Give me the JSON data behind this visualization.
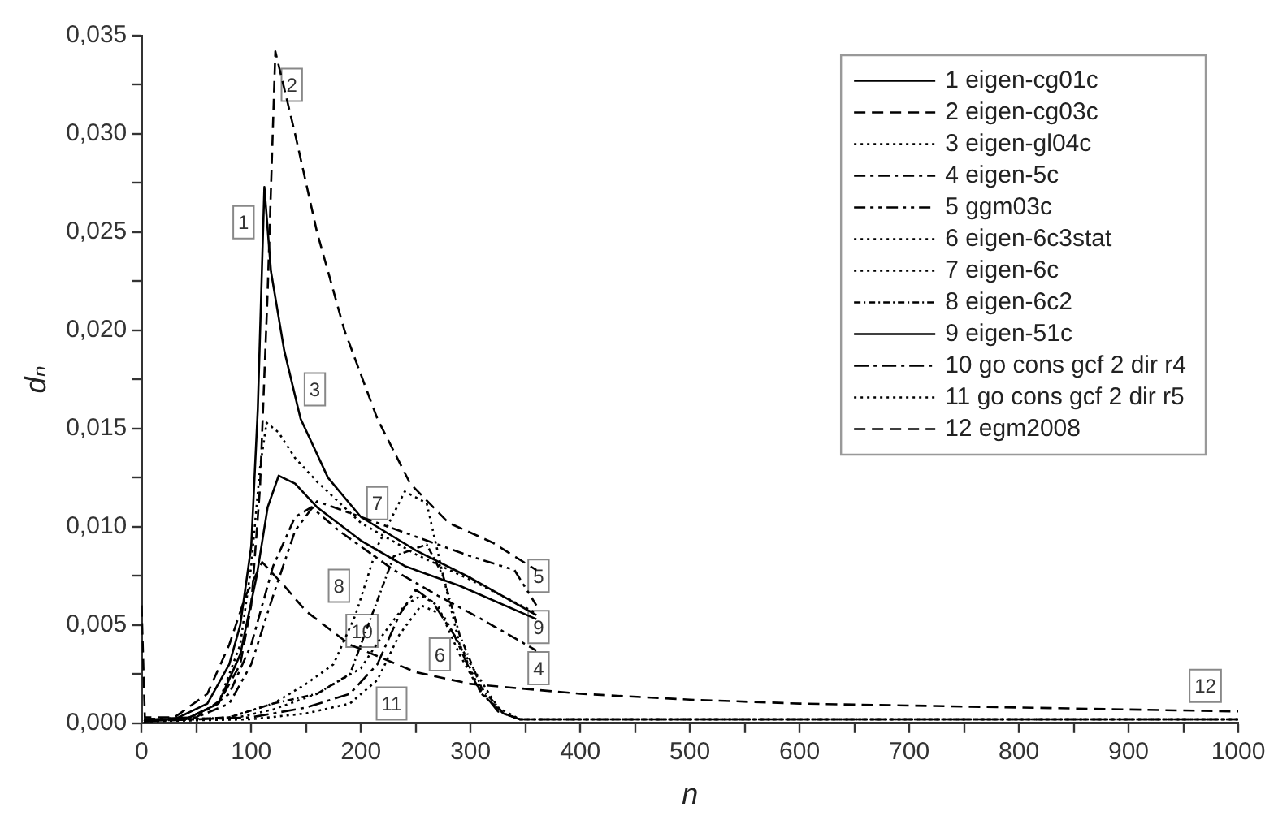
{
  "chart_data": {
    "type": "line",
    "xlabel": "n",
    "ylabel": "dₙ",
    "xlim": [
      0,
      1000
    ],
    "ylim": [
      0,
      0.035
    ],
    "xticks": [
      0,
      {
        "value": 50,
        "label": null
      },
      100,
      {
        "value": 150,
        "label": null
      },
      200,
      {
        "value": 250,
        "label": null
      },
      300,
      {
        "value": 350,
        "label": null
      },
      400,
      {
        "value": 450,
        "label": null
      },
      500,
      {
        "value": 550,
        "label": null
      },
      600,
      {
        "value": 650,
        "label": null
      },
      700,
      {
        "value": 750,
        "label": null
      },
      800,
      {
        "value": 850,
        "label": null
      },
      900,
      {
        "value": 950,
        "label": null
      },
      1000
    ],
    "yticks": [
      {
        "value": 0,
        "label": "0,000"
      },
      {
        "value": 0.0025,
        "label": null
      },
      {
        "value": 0.005,
        "label": "0,005"
      },
      {
        "value": 0.0075,
        "label": null
      },
      {
        "value": 0.01,
        "label": "0,010"
      },
      {
        "value": 0.0125,
        "label": null
      },
      {
        "value": 0.015,
        "label": "0,015"
      },
      {
        "value": 0.0175,
        "label": null
      },
      {
        "value": 0.02,
        "label": "0,020"
      },
      {
        "value": 0.0225,
        "label": null
      },
      {
        "value": 0.025,
        "label": "0,025"
      },
      {
        "value": 0.0275,
        "label": null
      },
      {
        "value": 0.03,
        "label": "0,030"
      },
      {
        "value": 0.0325,
        "label": null
      },
      {
        "value": 0.035,
        "label": "0,035"
      }
    ],
    "grid": false,
    "legend": "top right",
    "marker": "none",
    "series": [
      {
        "name": "1 eigen-cg01c",
        "color": "#000000",
        "line_style": "solid",
        "x": [
          2,
          30,
          60,
          80,
          90,
          100,
          106,
          112,
          118,
          130,
          145,
          170,
          200,
          250,
          300,
          360
        ],
        "values": [
          0.0002,
          0.0002,
          0.001,
          0.003,
          0.005,
          0.009,
          0.016,
          0.0273,
          0.023,
          0.019,
          0.0155,
          0.0125,
          0.0105,
          0.0088,
          0.0074,
          0.0055
        ]
      },
      {
        "name": "2 eigen-cg03c",
        "color": "#000000",
        "line_style": "dashed",
        "x": [
          2,
          40,
          70,
          90,
          100,
          108,
          115,
          122,
          140,
          160,
          185,
          215,
          245,
          280,
          320,
          360
        ],
        "values": [
          0.0002,
          0.0002,
          0.001,
          0.003,
          0.006,
          0.012,
          0.022,
          0.0342,
          0.03,
          0.025,
          0.02,
          0.0155,
          0.0122,
          0.0102,
          0.0092,
          0.0078
        ]
      },
      {
        "name": "3 eigen-gl04c",
        "color": "#000000",
        "line_style": "dotted",
        "x": [
          2,
          40,
          70,
          90,
          100,
          108,
          114,
          125,
          140,
          160,
          200,
          250,
          300,
          360
        ],
        "values": [
          0.0002,
          0.0002,
          0.001,
          0.004,
          0.008,
          0.013,
          0.0153,
          0.0148,
          0.0135,
          0.0123,
          0.0102,
          0.0086,
          0.0073,
          0.0056
        ]
      },
      {
        "name": "4 eigen-5c",
        "color": "#000000",
        "line_style": "dashed",
        "x": [
          2,
          50,
          80,
          100,
          120,
          140,
          155,
          180,
          200,
          230,
          270,
          310,
          360
        ],
        "values": [
          0.0002,
          0.0003,
          0.0015,
          0.004,
          0.008,
          0.0105,
          0.011,
          0.0098,
          0.009,
          0.0078,
          0.0065,
          0.0053,
          0.0037
        ]
      },
      {
        "name": "5 ggm03c",
        "color": "#000000",
        "line_style": "dashed",
        "x": [
          2,
          50,
          80,
          100,
          120,
          140,
          160,
          200,
          250,
          300,
          340,
          360
        ],
        "values": [
          0.0002,
          0.0003,
          0.001,
          0.003,
          0.0065,
          0.0098,
          0.0113,
          0.0105,
          0.0095,
          0.0085,
          0.0078,
          0.006
        ]
      },
      {
        "name": "6 eigen-6c3stat",
        "color": "#000000",
        "line_style": "dotted",
        "x": [
          2,
          80,
          120,
          160,
          200,
          220,
          240,
          255,
          270,
          290,
          310,
          330,
          345,
          400,
          600,
          800,
          1000
        ],
        "values": [
          0.0001,
          0.0002,
          0.0007,
          0.0015,
          0.0028,
          0.0045,
          0.006,
          0.0065,
          0.006,
          0.0035,
          0.0015,
          0.0005,
          0.0002,
          0.0002,
          0.0002,
          0.0002,
          0.0002
        ]
      },
      {
        "name": "7 eigen-6c",
        "color": "#000000",
        "line_style": "dotted",
        "x": [
          2,
          80,
          120,
          150,
          175,
          195,
          215,
          240,
          260,
          275,
          290,
          310,
          330,
          345,
          400,
          600,
          800,
          1000
        ],
        "values": [
          0.0001,
          0.0003,
          0.001,
          0.002,
          0.003,
          0.0055,
          0.009,
          0.0118,
          0.0112,
          0.0075,
          0.004,
          0.0015,
          0.0005,
          0.0002,
          0.0002,
          0.0002,
          0.0002,
          0.0002
        ]
      },
      {
        "name": "8 eigen-6c2",
        "color": "#000000",
        "line_style": "dashed",
        "x": [
          2,
          80,
          120,
          160,
          190,
          210,
          230,
          260,
          275,
          290,
          310,
          330,
          345,
          400,
          600,
          800,
          1000
        ],
        "values": [
          0.0001,
          0.0003,
          0.001,
          0.0015,
          0.0025,
          0.0055,
          0.0085,
          0.0091,
          0.0075,
          0.0045,
          0.0018,
          0.0005,
          0.0002,
          0.0002,
          0.0002,
          0.0002,
          0.0002
        ]
      },
      {
        "name": "9 eigen-51c",
        "color": "#000000",
        "line_style": "solid",
        "x": [
          2,
          40,
          70,
          90,
          105,
          115,
          125,
          140,
          160,
          200,
          240,
          290,
          360
        ],
        "values": [
          0.0002,
          0.0002,
          0.001,
          0.0035,
          0.0075,
          0.011,
          0.0126,
          0.0122,
          0.011,
          0.0093,
          0.008,
          0.007,
          0.0053
        ]
      },
      {
        "name": "10 go cons gcf 2 dir r4",
        "color": "#000000",
        "line_style": "dashed",
        "x": [
          2,
          100,
          150,
          190,
          215,
          235,
          250,
          265,
          285,
          305,
          325,
          345,
          400,
          600,
          800,
          1000
        ],
        "values": [
          0.0001,
          0.0003,
          0.0008,
          0.0015,
          0.003,
          0.0055,
          0.0068,
          0.0062,
          0.0045,
          0.002,
          0.0006,
          0.0002,
          0.0002,
          0.0002,
          0.0002,
          0.0002
        ]
      },
      {
        "name": "11 go cons gcf 2 dir r5",
        "color": "#000000",
        "line_style": "dotted",
        "x": [
          2,
          100,
          150,
          190,
          215,
          235,
          255,
          275,
          300,
          325,
          345,
          400,
          600,
          800,
          1000
        ],
        "values": [
          0.0001,
          0.0002,
          0.0005,
          0.001,
          0.0022,
          0.0045,
          0.006,
          0.0055,
          0.003,
          0.0008,
          0.0002,
          0.0002,
          0.0002,
          0.0002,
          0.0002
        ]
      },
      {
        "name": "12 egm2008",
        "color": "#000000",
        "line_style": "dashed",
        "x": [
          0,
          3,
          30,
          60,
          80,
          95,
          110,
          130,
          150,
          190,
          250,
          300,
          400,
          500,
          600,
          800,
          1000
        ],
        "values": [
          0.006,
          0.0003,
          0.0003,
          0.0015,
          0.004,
          0.0065,
          0.0082,
          0.007,
          0.0057,
          0.004,
          0.0026,
          0.002,
          0.0015,
          0.0012,
          0.001,
          0.0008,
          0.0006
        ]
      }
    ],
    "annotations": [
      {
        "text": "1",
        "x": 93,
        "y": 0.0255
      },
      {
        "text": "2",
        "x": 137,
        "y": 0.0325
      },
      {
        "text": "3",
        "x": 158,
        "y": 0.017
      },
      {
        "text": "7",
        "x": 215,
        "y": 0.0112
      },
      {
        "text": "8",
        "x": 180,
        "y": 0.007
      },
      {
        "text": "10",
        "x": 201,
        "y": 0.0047
      },
      {
        "text": "6",
        "x": 272,
        "y": 0.0035
      },
      {
        "text": "11",
        "x": 228,
        "y": 0.001
      },
      {
        "text": "5",
        "x": 362,
        "y": 0.0075
      },
      {
        "text": "9",
        "x": 362,
        "y": 0.0049
      },
      {
        "text": "4",
        "x": 362,
        "y": 0.0028
      },
      {
        "text": "12",
        "x": 970,
        "y": 0.0019
      }
    ]
  }
}
